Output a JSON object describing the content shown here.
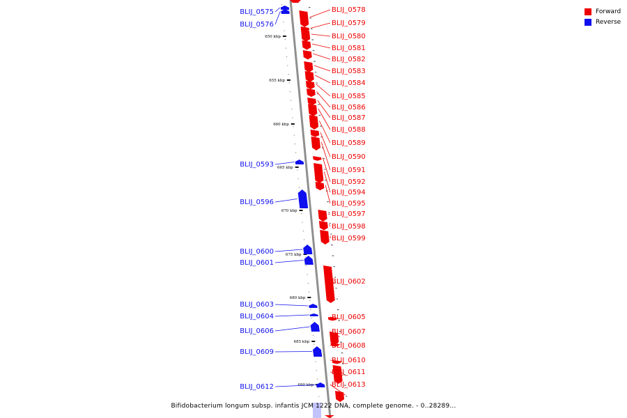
{
  "caption": "Bifidobacterium longum subsp. infantis JCM 1222 DNA, complete genome. - 0..28289...",
  "legend": {
    "forward": {
      "label": "Forward",
      "color": "#ee0000"
    },
    "reverse": {
      "label": "Reverse",
      "color": "#1010ee"
    }
  },
  "ticks": [
    "650 kbp",
    "655 kbp",
    "660 kbp",
    "665 kbp",
    "670 kbp",
    "675 kbp",
    "680 kbp",
    "685 kbp",
    "690 kbp"
  ],
  "forward_genes": [
    "BLIJ_0578",
    "BLIJ_0579",
    "BLIJ_0580",
    "BLIJ_0581",
    "BLIJ_0582",
    "BLIJ_0583",
    "BLIJ_0584",
    "BLIJ_0585",
    "BLIJ_0586",
    "BLIJ_0587",
    "BLIJ_0588",
    "BLIJ_0589",
    "BLIJ_0590",
    "BLIJ_0591",
    "BLIJ_0592",
    "BLIJ_0594",
    "BLIJ_0595",
    "BLIJ_0597",
    "BLIJ_0598",
    "BLIJ_0599",
    "BLIJ_0602",
    "BLIJ_0605",
    "BLIJ_0607",
    "BLIJ_0608",
    "BLIJ_0610",
    "BLIJ_0611",
    "BLIJ_0613"
  ],
  "reverse_genes": [
    "BLIJ_0575",
    "BLIJ_0576",
    "BLIJ_0593",
    "BLIJ_0596",
    "BLIJ_0600",
    "BLIJ_0601",
    "BLIJ_0603",
    "BLIJ_0604",
    "BLIJ_0606",
    "BLIJ_0609",
    "BLIJ_0612"
  ]
}
